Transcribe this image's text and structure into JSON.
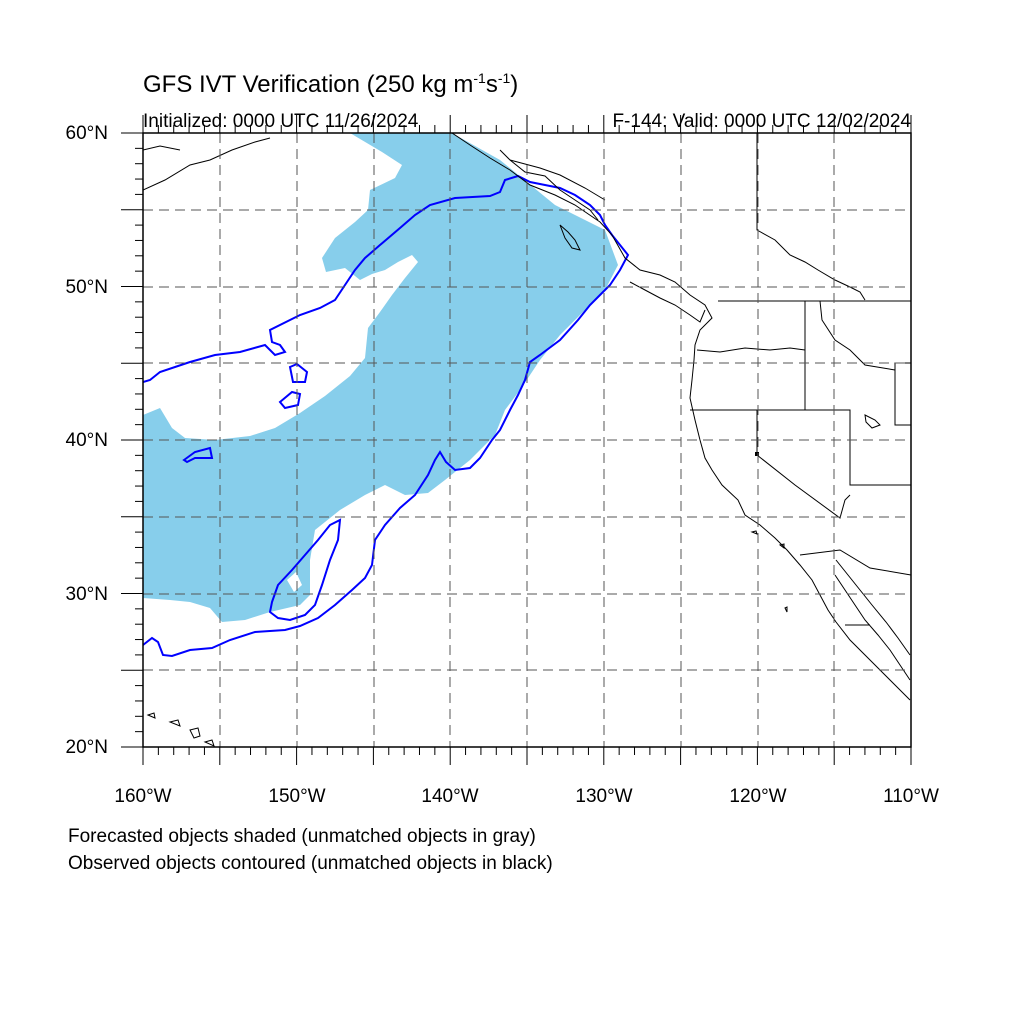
{
  "title": {
    "main": "GFS IVT Verification (250 kg m",
    "sup1": "-1",
    "mid": "s",
    "sup2": "-1",
    "end": ")"
  },
  "subtitle": {
    "initialized": "Initialized: 0000 UTC 11/26/2024",
    "valid": "F-144: Valid: 0000 UTC 12/02/2024"
  },
  "axes": {
    "lat_labels": [
      "60°N",
      "50°N",
      "40°N",
      "30°N",
      "20°N"
    ],
    "lon_labels": [
      "160°W",
      "150°W",
      "140°W",
      "130°W",
      "120°W",
      "110°W"
    ],
    "lat_range": [
      20,
      60
    ],
    "lon_range": [
      -160,
      -110
    ],
    "grid_spacing_deg": 5
  },
  "notes": {
    "line1": "Forecasted objects shaded (unmatched objects in gray)",
    "line2": "Observed objects contoured (unmatched objects in black)"
  },
  "colors": {
    "forecast_fill": "#87ceeb",
    "observed_contour": "#0000ff",
    "coastline": "#000000",
    "grid": "#555555"
  }
}
